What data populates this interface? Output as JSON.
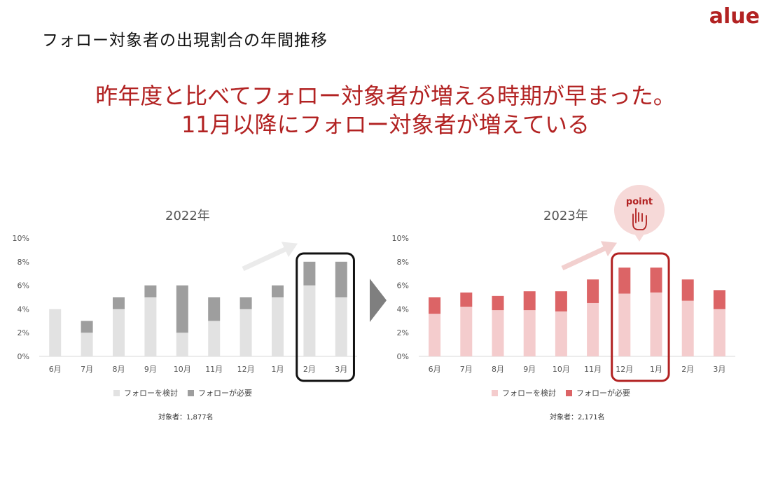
{
  "page": {
    "title": "フォロー対象者の出現割合の年間推移",
    "logo": "alue",
    "headline_line1": "昨年度と比べてフォロー対象者が増える時期が早まった。",
    "headline_line2": "11月以降にフォロー対象者が増えている",
    "point_label": "point",
    "colors": {
      "accent": "#b22222",
      "gray_light": "#e2e2e2",
      "gray_dark": "#9e9e9e",
      "pink_light": "#f4cccd",
      "pink_dark": "#dc6466"
    },
    "icons": [
      "hand-pointer-icon",
      "chevron-right-icon",
      "arrow-up-right-icon"
    ]
  },
  "chart_data": [
    {
      "type": "bar",
      "stacked": true,
      "title": "2022年",
      "categories": [
        "6月",
        "7月",
        "8月",
        "9月",
        "10月",
        "11月",
        "12月",
        "1月",
        "2月",
        "3月"
      ],
      "series": [
        {
          "name": "フォローを検討",
          "values": [
            4,
            2,
            4,
            5,
            2,
            3,
            4,
            5,
            6,
            5
          ]
        },
        {
          "name": "フォローが必要",
          "values": [
            0,
            1,
            1,
            1,
            4,
            2,
            1,
            1,
            2,
            3
          ]
        }
      ],
      "yticks": [
        "0%",
        "2%",
        "4%",
        "6%",
        "8%",
        "10%"
      ],
      "ylim": [
        0,
        10
      ],
      "legend_position": "bottom",
      "highlight_categories": [
        "2月",
        "3月"
      ],
      "note": "対象者：1,877名"
    },
    {
      "type": "bar",
      "stacked": true,
      "title": "2023年",
      "categories": [
        "6月",
        "7月",
        "8月",
        "9月",
        "10月",
        "11月",
        "12月",
        "1月",
        "2月",
        "3月"
      ],
      "series": [
        {
          "name": "フォローを検討",
          "values": [
            3.6,
            4.2,
            3.9,
            3.9,
            3.8,
            4.5,
            5.3,
            5.4,
            4.7,
            4.0
          ]
        },
        {
          "name": "フォローが必要",
          "values": [
            1.4,
            1.2,
            1.2,
            1.6,
            1.7,
            2.0,
            2.2,
            2.1,
            1.8,
            1.6
          ]
        }
      ],
      "yticks": [
        "0%",
        "2%",
        "4%",
        "6%",
        "8%",
        "10%"
      ],
      "ylim": [
        0,
        10
      ],
      "legend_position": "bottom",
      "highlight_categories": [
        "12月",
        "1月"
      ],
      "note": "対象者：2,171名"
    }
  ]
}
